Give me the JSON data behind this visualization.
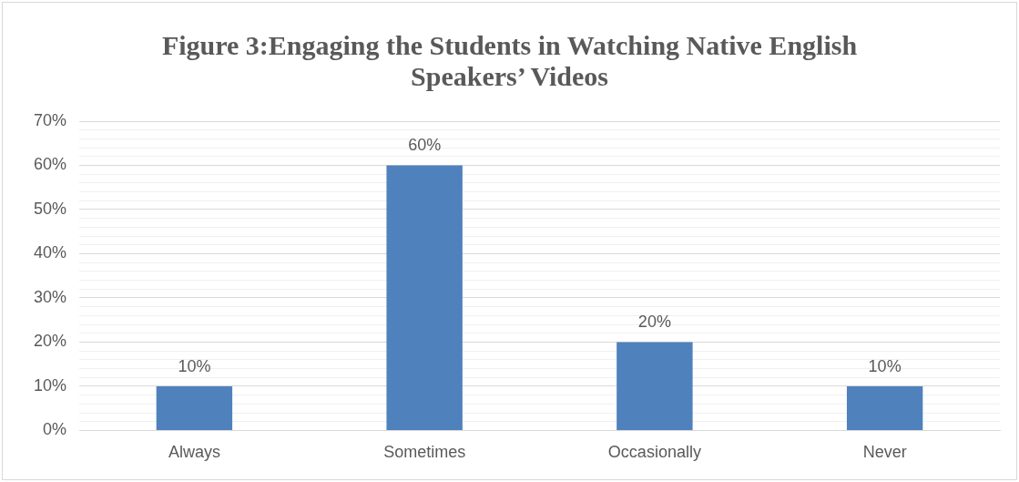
{
  "chart_data": {
    "type": "bar",
    "title": "Figure 3:Engaging the Students in Watching Native English Speakers’ Videos",
    "categories": [
      "Always",
      "Sometimes",
      "Occasionally",
      "Never"
    ],
    "values": [
      10,
      60,
      20,
      10
    ],
    "value_labels": [
      "10%",
      "60%",
      "20%",
      "10%"
    ],
    "color": "#4f81bd",
    "ylim": [
      0,
      70
    ],
    "yticks": [
      {
        "value": 0,
        "label": "0%"
      },
      {
        "value": 2,
        "label": null
      },
      {
        "value": 4,
        "label": null
      },
      {
        "value": 6,
        "label": null
      },
      {
        "value": 8,
        "label": null
      },
      {
        "value": 10,
        "label": "10%"
      },
      {
        "value": 12,
        "label": null
      },
      {
        "value": 14,
        "label": null
      },
      {
        "value": 16,
        "label": null
      },
      {
        "value": 18,
        "label": null
      },
      {
        "value": 20,
        "label": "20%"
      },
      {
        "value": 22,
        "label": null
      },
      {
        "value": 24,
        "label": null
      },
      {
        "value": 26,
        "label": null
      },
      {
        "value": 28,
        "label": null
      },
      {
        "value": 30,
        "label": "30%"
      },
      {
        "value": 32,
        "label": null
      },
      {
        "value": 34,
        "label": null
      },
      {
        "value": 36,
        "label": null
      },
      {
        "value": 38,
        "label": null
      },
      {
        "value": 40,
        "label": "40%"
      },
      {
        "value": 42,
        "label": null
      },
      {
        "value": 44,
        "label": null
      },
      {
        "value": 46,
        "label": null
      },
      {
        "value": 48,
        "label": null
      },
      {
        "value": 50,
        "label": "50%"
      },
      {
        "value": 52,
        "label": null
      },
      {
        "value": 54,
        "label": null
      },
      {
        "value": 56,
        "label": null
      },
      {
        "value": 58,
        "label": null
      },
      {
        "value": 60,
        "label": "60%"
      },
      {
        "value": 62,
        "label": null
      },
      {
        "value": 64,
        "label": null
      },
      {
        "value": 66,
        "label": null
      },
      {
        "value": 68,
        "label": null
      },
      {
        "value": 70,
        "label": "70%"
      }
    ],
    "grid": "y",
    "legend": false
  }
}
